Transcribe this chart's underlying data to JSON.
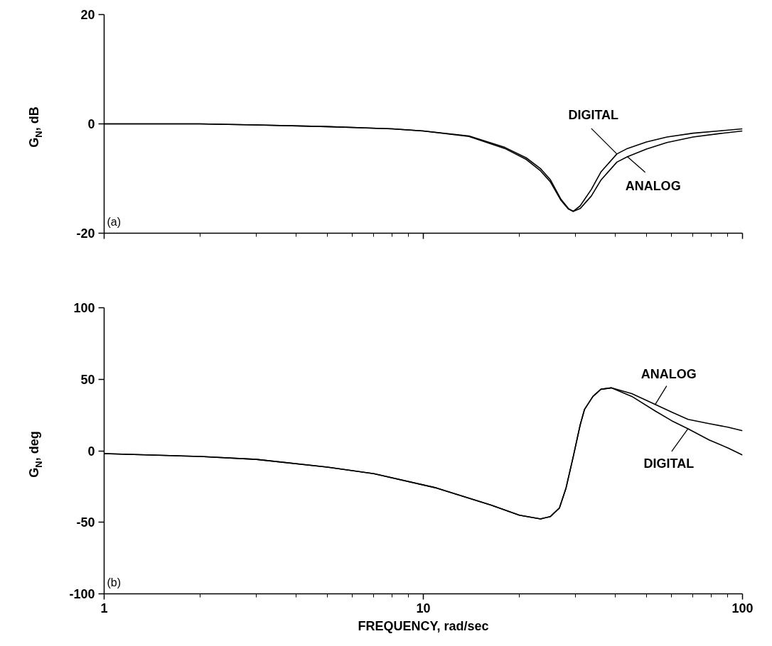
{
  "chart_data": [
    {
      "type": "line",
      "ylabel": "G$_{N}$, dB",
      "xlim": [
        1,
        100
      ],
      "xticks": [
        1,
        10,
        100
      ],
      "ylim": [
        -20,
        20
      ],
      "yticks": [
        -20,
        0,
        20
      ],
      "log": "x",
      "tick_labels": "y",
      "marker": "none",
      "line_style": "solid",
      "annotations": [
        "(a)"
      ],
      "series": [
        {
          "name": "DIGITAL",
          "color": "#000000",
          "x": [
            1,
            2,
            3,
            5,
            8,
            10,
            13.9,
            18,
            21,
            23.3,
            25,
            27,
            28.5,
            29.5,
            31,
            33.6,
            36,
            40.4,
            43.6,
            50,
            58,
            70,
            84,
            100
          ],
          "values": [
            0,
            0,
            -0.2,
            -0.5,
            -0.9,
            -1.3,
            -2.2,
            -4.3,
            -6.2,
            -8.2,
            -10.2,
            -13.8,
            -15.5,
            -16,
            -15,
            -12,
            -8.8,
            -5.5,
            -4.5,
            -3.3,
            -2.4,
            -1.7,
            -1.3,
            -0.9
          ]
        },
        {
          "name": "ANALOG",
          "color": "#000000",
          "x": [
            1,
            2,
            3,
            5,
            8,
            10,
            13.9,
            18,
            21,
            23.3,
            25,
            27,
            28.5,
            29.5,
            31,
            33.6,
            36,
            40.4,
            43.6,
            50,
            58,
            70,
            84,
            100
          ],
          "values": [
            0,
            0,
            -0.2,
            -0.5,
            -0.9,
            -1.3,
            -2.3,
            -4.5,
            -6.5,
            -8.6,
            -10.6,
            -14,
            -15.6,
            -16,
            -15.5,
            -13.2,
            -10.3,
            -7,
            -6,
            -4.6,
            -3.4,
            -2.4,
            -1.8,
            -1.3
          ]
        }
      ]
    },
    {
      "type": "line",
      "ylabel": "G$_{N}$, deg",
      "xlabel": "FREQUENCY, rad/sec",
      "xlim": [
        1,
        100
      ],
      "xticks": [
        1,
        10,
        100
      ],
      "ylim": [
        -100,
        100
      ],
      "yticks": [
        -100,
        -50,
        0,
        50,
        100
      ],
      "log": "x",
      "marker": "none",
      "line_style": "solid",
      "annotations": [
        "(b)"
      ],
      "series": [
        {
          "name": "ANALOG",
          "color": "#000000",
          "x": [
            1,
            2,
            3,
            5,
            7,
            11,
            16.3,
            20,
            23.3,
            25,
            26.7,
            28,
            29.5,
            31,
            32,
            34,
            36,
            38.8,
            45,
            53.3,
            60,
            67.5,
            78.6,
            90,
            100
          ],
          "values": [
            -2,
            -4,
            -6,
            -11.4,
            -16,
            -26,
            -38,
            -45,
            -47.6,
            -46,
            -40,
            -26,
            -4,
            18,
            29,
            38,
            43,
            44,
            40,
            32.4,
            27,
            22,
            19,
            16.5,
            14
          ]
        },
        {
          "name": "DIGITAL",
          "color": "#000000",
          "x": [
            1,
            2,
            3,
            5,
            7,
            11,
            16.3,
            20,
            23.3,
            25,
            26.7,
            28,
            29.5,
            31,
            32,
            34,
            36,
            38.8,
            45,
            53.3,
            60,
            67.5,
            78.6,
            90,
            100
          ],
          "values": [
            -2,
            -4,
            -6,
            -11.4,
            -16,
            -26,
            -38,
            -45,
            -47.6,
            -46,
            -40,
            -26,
            -4,
            18,
            29,
            38,
            43,
            44,
            38,
            27.8,
            21,
            15.4,
            7.6,
            2,
            -3
          ]
        }
      ]
    }
  ]
}
